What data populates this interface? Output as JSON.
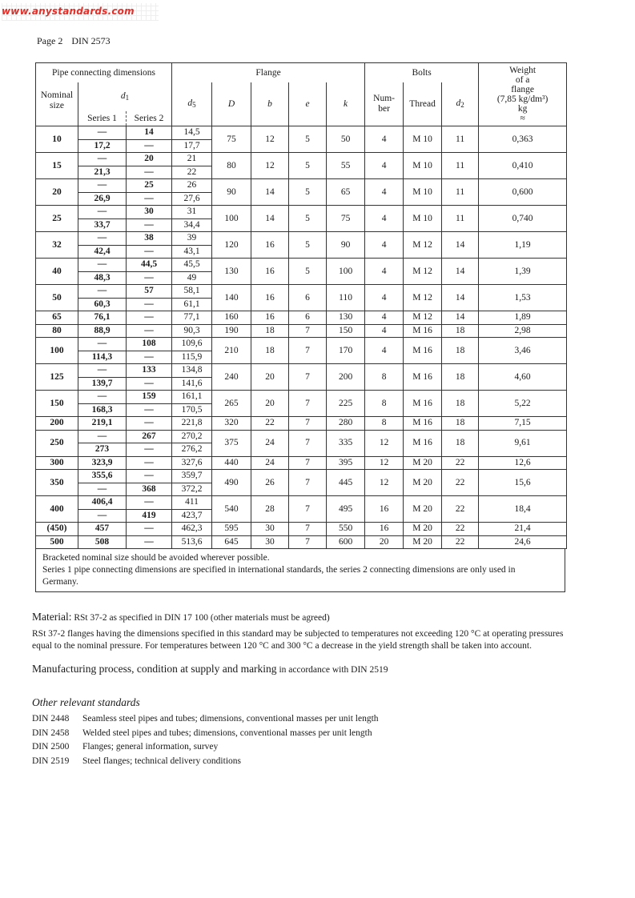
{
  "watermark": "www.anystandards.com",
  "page_header": {
    "page": "Page 2",
    "standard": "DIN 2573"
  },
  "table": {
    "header": {
      "pipe_group": "Pipe connecting dimensions",
      "flange_group": "Flange",
      "bolts_group": "Bolts",
      "weight_l1": "Weight",
      "weight_l2": "of a",
      "weight_l3": "flange",
      "weight_l4": "(7,85 kg/dm³)",
      "weight_l5": "kg",
      "weight_l6": "≈",
      "nominal_l1": "Nominal",
      "nominal_l2": "size",
      "d1_sym": "d",
      "d1_sub": "1",
      "series1": "Series 1",
      "series2": "Series 2",
      "d5_sym": "d",
      "d5_sub": "5",
      "D": "D",
      "b": "b",
      "e": "e",
      "k": "k",
      "number_l1": "Num-",
      "number_l2": "ber",
      "thread": "Thread",
      "d2_sym": "d",
      "d2_sub": "2"
    },
    "groups": [
      {
        "nominal": "10",
        "rows": [
          [
            "—",
            "14",
            "14,5"
          ],
          [
            "17,2",
            "—",
            "17,7"
          ]
        ],
        "D": "75",
        "b": "12",
        "e": "5",
        "k": "50",
        "number": "4",
        "thread": "M 10",
        "d2": "11",
        "weight": "0,363"
      },
      {
        "nominal": "15",
        "rows": [
          [
            "—",
            "20",
            "21"
          ],
          [
            "21,3",
            "—",
            "22"
          ]
        ],
        "D": "80",
        "b": "12",
        "e": "5",
        "k": "55",
        "number": "4",
        "thread": "M 10",
        "d2": "11",
        "weight": "0,410"
      },
      {
        "nominal": "20",
        "rows": [
          [
            "—",
            "25",
            "26"
          ],
          [
            "26,9",
            "—",
            "27,6"
          ]
        ],
        "D": "90",
        "b": "14",
        "e": "5",
        "k": "65",
        "number": "4",
        "thread": "M 10",
        "d2": "11",
        "weight": "0,600"
      },
      {
        "nominal": "25",
        "rows": [
          [
            "—",
            "30",
            "31"
          ],
          [
            "33,7",
            "—",
            "34,4"
          ]
        ],
        "D": "100",
        "b": "14",
        "e": "5",
        "k": "75",
        "number": "4",
        "thread": "M 10",
        "d2": "11",
        "weight": "0,740"
      },
      {
        "nominal": "32",
        "rows": [
          [
            "—",
            "38",
            "39"
          ],
          [
            "42,4",
            "—",
            "43,1"
          ]
        ],
        "D": "120",
        "b": "16",
        "e": "5",
        "k": "90",
        "number": "4",
        "thread": "M 12",
        "d2": "14",
        "weight": "1,19"
      },
      {
        "nominal": "40",
        "rows": [
          [
            "—",
            "44,5",
            "45,5"
          ],
          [
            "48,3",
            "—",
            "49"
          ]
        ],
        "D": "130",
        "b": "16",
        "e": "5",
        "k": "100",
        "number": "4",
        "thread": "M 12",
        "d2": "14",
        "weight": "1,39"
      },
      {
        "nominal": "50",
        "rows": [
          [
            "—",
            "57",
            "58,1"
          ],
          [
            "60,3",
            "—",
            "61,1"
          ]
        ],
        "D": "140",
        "b": "16",
        "e": "6",
        "k": "110",
        "number": "4",
        "thread": "M 12",
        "d2": "14",
        "weight": "1,53"
      },
      {
        "nominal": "65",
        "rows": [
          [
            "76,1",
            "—",
            "77,1"
          ]
        ],
        "D": "160",
        "b": "16",
        "e": "6",
        "k": "130",
        "number": "4",
        "thread": "M 12",
        "d2": "14",
        "weight": "1,89"
      },
      {
        "nominal": "80",
        "rows": [
          [
            "88,9",
            "—",
            "90,3"
          ]
        ],
        "D": "190",
        "b": "18",
        "e": "7",
        "k": "150",
        "number": "4",
        "thread": "M 16",
        "d2": "18",
        "weight": "2,98"
      },
      {
        "nominal": "100",
        "rows": [
          [
            "—",
            "108",
            "109,6"
          ],
          [
            "114,3",
            "—",
            "115,9"
          ]
        ],
        "D": "210",
        "b": "18",
        "e": "7",
        "k": "170",
        "number": "4",
        "thread": "M 16",
        "d2": "18",
        "weight": "3,46"
      },
      {
        "nominal": "125",
        "rows": [
          [
            "—",
            "133",
            "134,8"
          ],
          [
            "139,7",
            "—",
            "141,6"
          ]
        ],
        "D": "240",
        "b": "20",
        "e": "7",
        "k": "200",
        "number": "8",
        "thread": "M 16",
        "d2": "18",
        "weight": "4,60"
      },
      {
        "nominal": "150",
        "rows": [
          [
            "—",
            "159",
            "161,1"
          ],
          [
            "168,3",
            "—",
            "170,5"
          ]
        ],
        "D": "265",
        "b": "20",
        "e": "7",
        "k": "225",
        "number": "8",
        "thread": "M 16",
        "d2": "18",
        "weight": "5,22"
      },
      {
        "nominal": "200",
        "rows": [
          [
            "219,1",
            "—",
            "221,8"
          ]
        ],
        "D": "320",
        "b": "22",
        "e": "7",
        "k": "280",
        "number": "8",
        "thread": "M 16",
        "d2": "18",
        "weight": "7,15"
      },
      {
        "nominal": "250",
        "rows": [
          [
            "—",
            "267",
            "270,2"
          ],
          [
            "273",
            "—",
            "276,2"
          ]
        ],
        "D": "375",
        "b": "24",
        "e": "7",
        "k": "335",
        "number": "12",
        "thread": "M 16",
        "d2": "18",
        "weight": "9,61"
      },
      {
        "nominal": "300",
        "rows": [
          [
            "323,9",
            "—",
            "327,6"
          ]
        ],
        "D": "440",
        "b": "24",
        "e": "7",
        "k": "395",
        "number": "12",
        "thread": "M 20",
        "d2": "22",
        "weight": "12,6"
      },
      {
        "nominal": "350",
        "rows": [
          [
            "355,6",
            "—",
            "359,7"
          ],
          [
            "—",
            "368",
            "372,2"
          ]
        ],
        "D": "490",
        "b": "26",
        "e": "7",
        "k": "445",
        "number": "12",
        "thread": "M 20",
        "d2": "22",
        "weight": "15,6"
      },
      {
        "nominal": "400",
        "rows": [
          [
            "406,4",
            "—",
            "411"
          ],
          [
            "—",
            "419",
            "423,7"
          ]
        ],
        "D": "540",
        "b": "28",
        "e": "7",
        "k": "495",
        "number": "16",
        "thread": "M 20",
        "d2": "22",
        "weight": "18,4"
      },
      {
        "nominal": "(450)",
        "rows": [
          [
            "457",
            "—",
            "462,3"
          ]
        ],
        "D": "595",
        "b": "30",
        "e": "7",
        "k": "550",
        "number": "16",
        "thread": "M 20",
        "d2": "22",
        "weight": "21,4"
      },
      {
        "nominal": "500",
        "rows": [
          [
            "508",
            "—",
            "513,6"
          ]
        ],
        "D": "645",
        "b": "30",
        "e": "7",
        "k": "600",
        "number": "20",
        "thread": "M 20",
        "d2": "22",
        "weight": "24,6"
      }
    ],
    "notes": [
      "Bracketed nominal size should be avoided wherever possible.",
      "Series 1 pipe connecting dimensions are specified in international standards, the series 2 connecting dimensions are only used in Germany."
    ]
  },
  "material": {
    "heading": "Material:",
    "text": "RSt 37-2 as specified in DIN 17 100 (other materials must be agreed)",
    "paragraph": "RSt 37-2 flanges having the dimensions specified in this standard may be subjected to temperatures not exceeding 120 °C at operating pressures equal to the nominal pressure. For temperatures between 120 °C and 300 °C a decrease in the yield strength shall be taken into account."
  },
  "manufacturing": {
    "heading": "Manufacturing process, condition at supply and marking",
    "text": "in accordance with DIN 2519"
  },
  "other_standards": {
    "heading": "Other relevant standards",
    "items": [
      {
        "code": "DIN 2448",
        "title": "Seamless steel pipes and tubes; dimensions, conventional masses per unit length"
      },
      {
        "code": "DIN 2458",
        "title": "Welded steel pipes and tubes; dimensions, conventional masses per unit length"
      },
      {
        "code": "DIN 2500",
        "title": "Flanges; general information, survey"
      },
      {
        "code": "DIN 2519",
        "title": "Steel flanges; technical delivery conditions"
      }
    ]
  }
}
